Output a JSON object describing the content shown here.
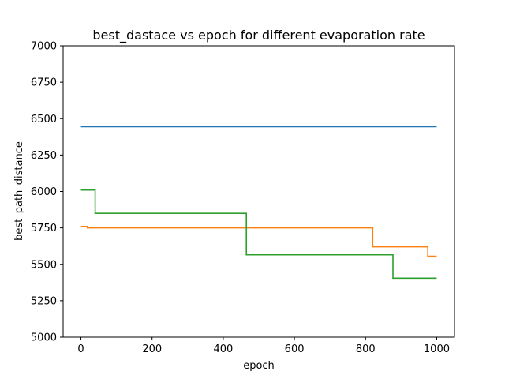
{
  "chart_data": {
    "type": "line",
    "title": "best_dastace vs epoch for different evaporation rate",
    "xlabel": "epoch",
    "ylabel": "best_path_distance",
    "xlim": [
      -50,
      1050
    ],
    "ylim": [
      5000,
      7000
    ],
    "xticks": [
      0,
      200,
      400,
      600,
      800,
      1000
    ],
    "yticks": [
      5000,
      5250,
      5500,
      5750,
      6000,
      6250,
      6500,
      6750,
      7000
    ],
    "grid": false,
    "legend": "none",
    "series": [
      {
        "color": "#1f77b4",
        "x": [
          0,
          1000
        ],
        "y": [
          6445,
          6445
        ]
      },
      {
        "color": "#ff7f0e",
        "x": [
          0,
          18,
          18,
          820,
          820,
          975,
          975,
          1000
        ],
        "y": [
          5760,
          5760,
          5750,
          5750,
          5620,
          5620,
          5555,
          5555
        ]
      },
      {
        "color": "#2ca02c",
        "x": [
          0,
          40,
          40,
          465,
          465,
          877,
          877,
          1000
        ],
        "y": [
          6010,
          6010,
          5850,
          5850,
          5565,
          5565,
          5405,
          5405
        ]
      }
    ]
  }
}
